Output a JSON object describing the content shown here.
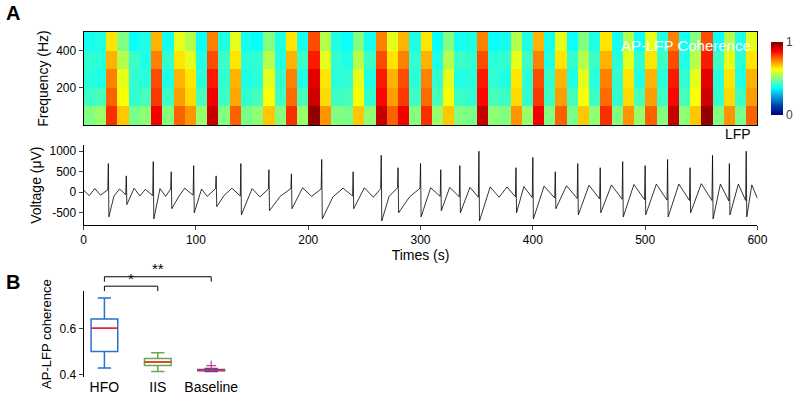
{
  "chart_data": [
    {
      "type": "heatmap",
      "panel": "A",
      "annotation": "AP-LFP Coherence",
      "y_label": "Frequency (Hz)",
      "tick_labels": "y",
      "color": "Jet",
      "xlim": [
        0,
        600
      ],
      "ylim": [
        0,
        500
      ],
      "yticks": [
        200,
        400
      ],
      "x": [
        5,
        15,
        25,
        35,
        45,
        55,
        65,
        75,
        85,
        95,
        105,
        115,
        125,
        135,
        145,
        155,
        165,
        175,
        185,
        195,
        205,
        215,
        225,
        235,
        245,
        255,
        265,
        275,
        285,
        295,
        305,
        315,
        325,
        335,
        345,
        355,
        365,
        375,
        385,
        395,
        405,
        415,
        425,
        435,
        445,
        455,
        465,
        475,
        485,
        495,
        505,
        515,
        525,
        535,
        545,
        555,
        565,
        575,
        585,
        595
      ],
      "y": [
        50,
        150,
        250,
        350,
        450
      ],
      "cells": [
        [
          0.5,
          0.52,
          0.83,
          0.68,
          0.49,
          0.51,
          0.88,
          0.5,
          0.78,
          0.73,
          0.52,
          0.93,
          0.5,
          0.78,
          0.49,
          0.51,
          0.68,
          0.5,
          0.83,
          0.52,
          0.98,
          0.73,
          0.5,
          0.49,
          0.68,
          0.51,
          0.93,
          0.78,
          0.88,
          0.5,
          0.83,
          0.52,
          0.68,
          0.5,
          0.49,
          0.93,
          0.51,
          0.5,
          0.73,
          0.52,
          0.88,
          0.5,
          0.78,
          0.49,
          0.68,
          0.51,
          0.83,
          0.5,
          0.73,
          0.52,
          0.78,
          0.5,
          0.93,
          0.51,
          0.68,
          0.98,
          0.5,
          0.73,
          0.49,
          0.78
        ],
        [
          0.43,
          0.44,
          0.78,
          0.62,
          0.42,
          0.44,
          0.82,
          0.43,
          0.72,
          0.66,
          0.44,
          0.88,
          0.43,
          0.71,
          0.42,
          0.44,
          0.62,
          0.43,
          0.77,
          0.44,
          0.92,
          0.66,
          0.43,
          0.44,
          0.62,
          0.42,
          0.87,
          0.72,
          0.82,
          0.43,
          0.77,
          0.44,
          0.62,
          0.43,
          0.42,
          0.87,
          0.44,
          0.43,
          0.66,
          0.42,
          0.82,
          0.43,
          0.72,
          0.44,
          0.62,
          0.43,
          0.77,
          0.42,
          0.66,
          0.44,
          0.72,
          0.43,
          0.87,
          0.44,
          0.62,
          0.92,
          0.42,
          0.66,
          0.43,
          0.72
        ],
        [
          0.41,
          0.4,
          0.75,
          0.6,
          0.42,
          0.41,
          0.8,
          0.4,
          0.7,
          0.65,
          0.41,
          0.85,
          0.42,
          0.7,
          0.4,
          0.41,
          0.6,
          0.42,
          0.75,
          0.4,
          0.9,
          0.65,
          0.41,
          0.42,
          0.6,
          0.4,
          0.85,
          0.7,
          0.8,
          0.41,
          0.75,
          0.42,
          0.6,
          0.4,
          0.41,
          0.85,
          0.42,
          0.4,
          0.65,
          0.41,
          0.8,
          0.42,
          0.7,
          0.4,
          0.6,
          0.41,
          0.75,
          0.42,
          0.65,
          0.4,
          0.7,
          0.41,
          0.85,
          0.42,
          0.6,
          0.9,
          0.41,
          0.65,
          0.4,
          0.7
        ],
        [
          0.42,
          0.41,
          0.7,
          0.55,
          0.43,
          0.4,
          0.75,
          0.42,
          0.65,
          0.6,
          0.4,
          0.8,
          0.43,
          0.65,
          0.41,
          0.42,
          0.55,
          0.4,
          0.7,
          0.43,
          0.85,
          0.6,
          0.42,
          0.4,
          0.55,
          0.43,
          0.8,
          0.65,
          0.75,
          0.42,
          0.7,
          0.4,
          0.55,
          0.43,
          0.42,
          0.8,
          0.41,
          0.42,
          0.6,
          0.43,
          0.75,
          0.4,
          0.65,
          0.42,
          0.55,
          0.43,
          0.7,
          0.41,
          0.6,
          0.42,
          0.65,
          0.43,
          0.8,
          0.4,
          0.55,
          0.85,
          0.43,
          0.6,
          0.41,
          0.65
        ],
        [
          0.39,
          0.4,
          0.65,
          0.5,
          0.38,
          0.4,
          0.7,
          0.39,
          0.6,
          0.55,
          0.38,
          0.75,
          0.4,
          0.6,
          0.39,
          0.38,
          0.5,
          0.4,
          0.65,
          0.39,
          0.8,
          0.55,
          0.4,
          0.38,
          0.5,
          0.39,
          0.75,
          0.6,
          0.7,
          0.4,
          0.65,
          0.38,
          0.5,
          0.39,
          0.4,
          0.75,
          0.38,
          0.39,
          0.55,
          0.4,
          0.7,
          0.39,
          0.6,
          0.38,
          0.5,
          0.4,
          0.65,
          0.39,
          0.55,
          0.38,
          0.6,
          0.4,
          0.75,
          0.39,
          0.5,
          0.8,
          0.38,
          0.55,
          0.4,
          0.6
        ]
      ],
      "colorbar": {
        "range": [
          0,
          1
        ],
        "ticks": [
          0,
          1
        ]
      }
    },
    {
      "type": "line",
      "annotation": "LFP",
      "x_label": "Times (s)",
      "y_label": "Voltage (μV)",
      "color": "#000000",
      "xlim": [
        0,
        600
      ],
      "xticks": [
        0,
        100,
        200,
        300,
        400,
        500,
        600
      ],
      "ylim": [
        -800,
        1150
      ],
      "yticks": [
        -500,
        0,
        500,
        1000
      ],
      "points": [
        [
          0,
          50
        ],
        [
          5,
          -80
        ],
        [
          10,
          90
        ],
        [
          15,
          -70
        ],
        [
          21.5,
          60
        ],
        [
          22,
          700
        ],
        [
          22.5,
          -600
        ],
        [
          27,
          -90
        ],
        [
          32,
          80
        ],
        [
          37.5,
          -60
        ],
        [
          38,
          400
        ],
        [
          38.5,
          -300
        ],
        [
          45,
          100
        ],
        [
          50,
          -90
        ],
        [
          55,
          70
        ],
        [
          61.5,
          -80
        ],
        [
          62,
          750
        ],
        [
          62.5,
          -650
        ],
        [
          68,
          90
        ],
        [
          73,
          -100
        ],
        [
          77.5,
          80
        ],
        [
          78,
          500
        ],
        [
          78.5,
          -400
        ],
        [
          85,
          -90
        ],
        [
          90,
          100
        ],
        [
          97.5,
          -70
        ],
        [
          98,
          650
        ],
        [
          98.5,
          -500
        ],
        [
          105,
          80
        ],
        [
          110,
          -100
        ],
        [
          117.5,
          90
        ],
        [
          118,
          400
        ],
        [
          118.5,
          -350
        ],
        [
          125,
          -80
        ],
        [
          132,
          100
        ],
        [
          139.5,
          -90
        ],
        [
          140,
          700
        ],
        [
          140.5,
          -550
        ],
        [
          150,
          90
        ],
        [
          157,
          -110
        ],
        [
          164.5,
          80
        ],
        [
          165,
          550
        ],
        [
          165.5,
          -450
        ],
        [
          175,
          -100
        ],
        [
          184.5,
          90
        ],
        [
          185,
          450
        ],
        [
          185.5,
          -400
        ],
        [
          195,
          110
        ],
        [
          203,
          -100
        ],
        [
          211.5,
          80
        ],
        [
          212,
          800
        ],
        [
          212.5,
          -650
        ],
        [
          222,
          -110
        ],
        [
          231,
          100
        ],
        [
          239.5,
          -90
        ],
        [
          240,
          500
        ],
        [
          240.5,
          -400
        ],
        [
          250,
          110
        ],
        [
          258,
          -120
        ],
        [
          264.5,
          90
        ],
        [
          265,
          900
        ],
        [
          265.5,
          -700
        ],
        [
          272,
          -100
        ],
        [
          279.5,
          110
        ],
        [
          280,
          600
        ],
        [
          280.5,
          -500
        ],
        [
          290,
          -120
        ],
        [
          299.5,
          100
        ],
        [
          300,
          700
        ],
        [
          300.5,
          -600
        ],
        [
          309,
          110
        ],
        [
          317.5,
          -100
        ],
        [
          318,
          550
        ],
        [
          318.5,
          -450
        ],
        [
          326,
          120
        ],
        [
          334.5,
          -110
        ],
        [
          335,
          650
        ],
        [
          335.5,
          -500
        ],
        [
          344,
          120
        ],
        [
          351.5,
          -120
        ],
        [
          352,
          1000
        ],
        [
          352.5,
          -700
        ],
        [
          362,
          130
        ],
        [
          370,
          -120
        ],
        [
          377,
          130
        ],
        [
          384.5,
          -110
        ],
        [
          385,
          600
        ],
        [
          385.5,
          -500
        ],
        [
          392,
          140
        ],
        [
          399.5,
          -130
        ],
        [
          400,
          850
        ],
        [
          400.5,
          -650
        ],
        [
          410,
          150
        ],
        [
          419.5,
          -140
        ],
        [
          420,
          500
        ],
        [
          420.5,
          -400
        ],
        [
          430,
          160
        ],
        [
          439.5,
          -150
        ],
        [
          440,
          700
        ],
        [
          440.5,
          -550
        ],
        [
          450,
          170
        ],
        [
          459.5,
          -160
        ],
        [
          460,
          600
        ],
        [
          460.5,
          -500
        ],
        [
          470,
          180
        ],
        [
          479.5,
          -170
        ],
        [
          480,
          750
        ],
        [
          480.5,
          -600
        ],
        [
          490,
          190
        ],
        [
          499.5,
          -180
        ],
        [
          500,
          650
        ],
        [
          500.5,
          -550
        ],
        [
          510,
          200
        ],
        [
          519.5,
          -190
        ],
        [
          520,
          800
        ],
        [
          520.5,
          -600
        ],
        [
          530,
          200
        ],
        [
          539.5,
          -200
        ],
        [
          540,
          600
        ],
        [
          540.5,
          -500
        ],
        [
          550,
          210
        ],
        [
          559.5,
          -200
        ],
        [
          560,
          900
        ],
        [
          560.5,
          -650
        ],
        [
          567,
          200
        ],
        [
          574.5,
          -210
        ],
        [
          575,
          700
        ],
        [
          575.5,
          -550
        ],
        [
          583,
          200
        ],
        [
          589.5,
          -200
        ],
        [
          590,
          1000
        ],
        [
          590.5,
          -600
        ],
        [
          595,
          180
        ],
        [
          600,
          -150
        ]
      ]
    },
    {
      "type": "box",
      "panel": "B",
      "y_label": "AP-LFP coherence",
      "categories": [
        "HFO",
        "IIS",
        "Baseline"
      ],
      "ylim": [
        0.39,
        0.76
      ],
      "yticks": [
        0.4,
        0.6
      ],
      "boxes": [
        {
          "name": "HFO",
          "color": "#2a6fd6",
          "lower_whisker": 0.43,
          "q1": 0.5,
          "median": 0.6,
          "q3": 0.64,
          "upper_whisker": 0.73,
          "outliers": []
        },
        {
          "name": "IIS",
          "color": "#6aa84f",
          "lower_whisker": 0.415,
          "q1": 0.44,
          "median": 0.455,
          "q3": 0.47,
          "upper_whisker": 0.495,
          "outliers": []
        },
        {
          "name": "Baseline",
          "color": "#3a4fb8",
          "lower_whisker": 0.415,
          "q1": 0.418,
          "median": 0.42,
          "q3": 0.423,
          "upper_whisker": 0.427,
          "outliers": [
            0.44
          ]
        }
      ],
      "significance": [
        {
          "pair": [
            "HFO",
            "IIS"
          ],
          "label": "*"
        },
        {
          "pair": [
            "HFO",
            "Baseline"
          ],
          "label": "**"
        }
      ]
    }
  ]
}
